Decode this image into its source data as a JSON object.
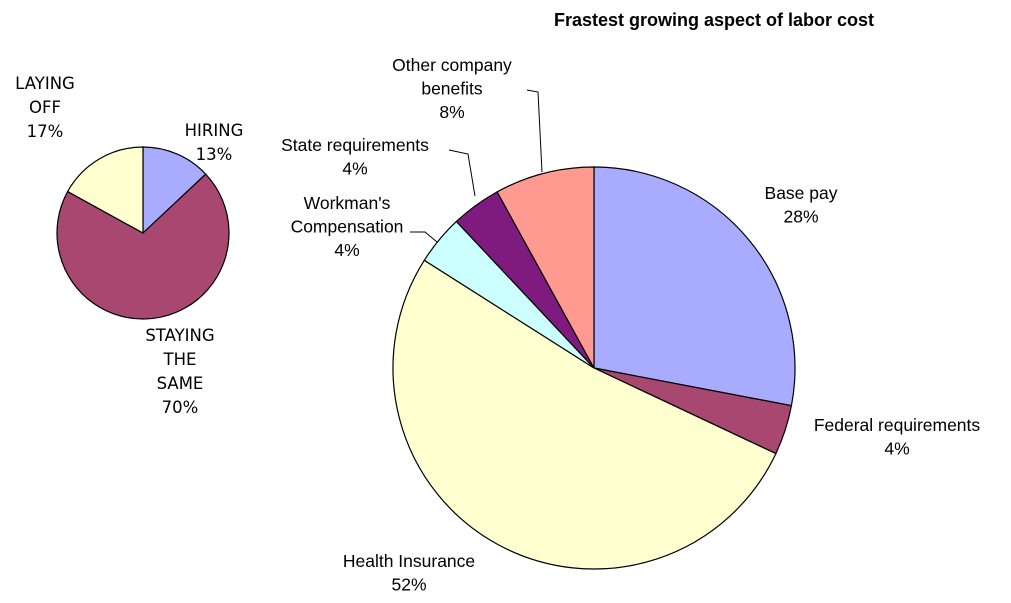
{
  "chart_data": [
    {
      "type": "pie",
      "categories": [
        "HIRING",
        "STAYING THE SAME",
        "LAYING OFF"
      ],
      "values": [
        13,
        70,
        17
      ],
      "value_labels": [
        "13%",
        "70%",
        "17%"
      ],
      "colors": [
        "#a9abff",
        "#a8476f",
        "#ffffd0"
      ]
    },
    {
      "type": "pie",
      "title": "Frastest growing aspect of labor cost",
      "categories": [
        "Base pay",
        "Federal requirements",
        "Health Insurance",
        "Workman's Compensation",
        "State requirements",
        "Other company benefits"
      ],
      "values": [
        28,
        4,
        52,
        4,
        4,
        8
      ],
      "value_labels": [
        "28%",
        "4%",
        "52%",
        "4%",
        "4%",
        "8%"
      ],
      "colors": [
        "#a9abff",
        "#a8476f",
        "#ffffd0",
        "#ccffff",
        "#7f1a7f",
        "#ff9a90"
      ]
    }
  ]
}
